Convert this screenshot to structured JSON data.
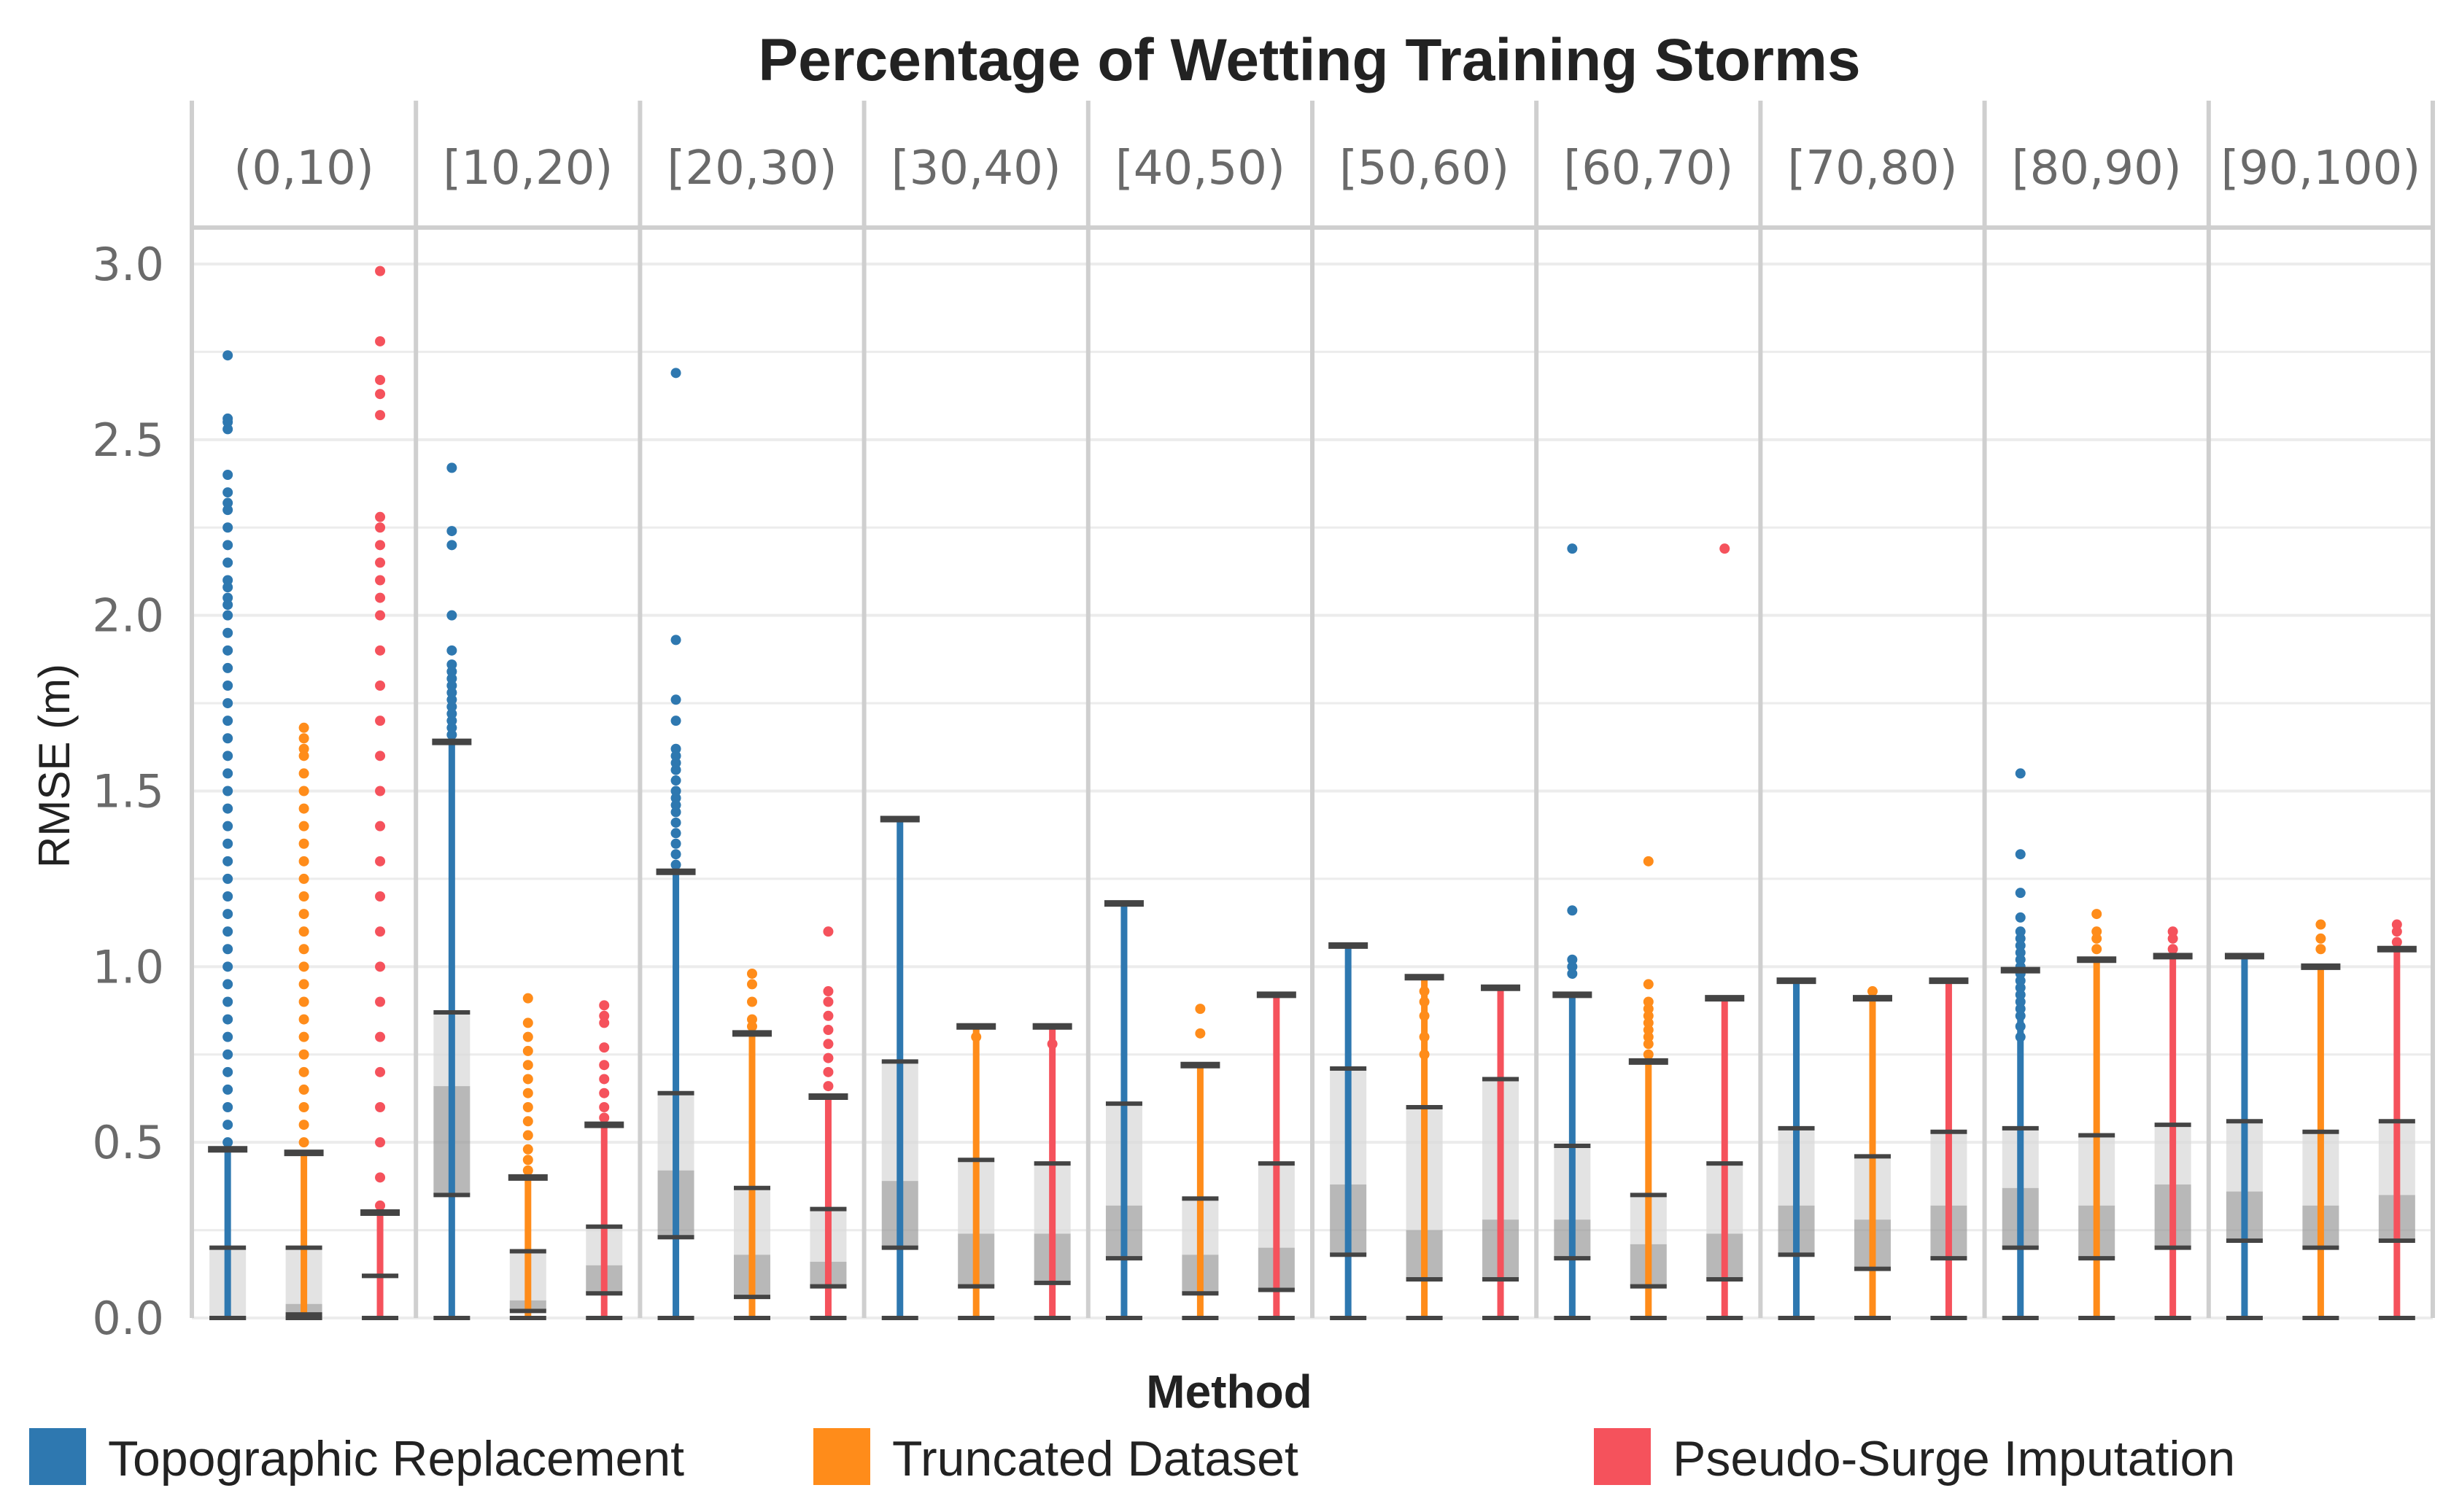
{
  "chart_data": {
    "type": "boxplot",
    "title": "Percentage of Wetting Training Storms",
    "ylabel": "RMSE (m)",
    "ylim": [
      0,
      3.0
    ],
    "yticks": [
      "0.0",
      "0.5",
      "1.0",
      "1.5",
      "2.0",
      "2.5",
      "3.0"
    ],
    "facets": [
      "(0,10)",
      "[10,20)",
      "[20,30)",
      "[30,40)",
      "[40,50)",
      "[50,60)",
      "[60,70)",
      "[70,80)",
      "[80,90)",
      "[90,100)"
    ],
    "grid": true,
    "legend": {
      "title": "Method",
      "position": "bottom",
      "entries": [
        {
          "name": "Topographic Replacement",
          "color": "#2e78b0"
        },
        {
          "name": "Truncated Dataset",
          "color": "#ff8c1a"
        },
        {
          "name": "Pseudo-Surge Imputation",
          "color": "#f5525c"
        }
      ]
    },
    "series": [
      {
        "name": "Topographic Replacement",
        "color": "#2e78b0",
        "boxes": [
          {
            "min": 0.0,
            "q1": 0.0,
            "median": 0.0,
            "q3": 0.2,
            "max": 0.48
          },
          {
            "min": 0.35,
            "q1": 0.35,
            "median": 0.66,
            "q3": 0.87,
            "max": 1.64
          },
          {
            "min": 0.23,
            "q1": 0.23,
            "median": 0.42,
            "q3": 0.64,
            "max": 1.27
          },
          {
            "min": 0.2,
            "q1": 0.2,
            "median": 0.39,
            "q3": 0.73,
            "max": 1.42
          },
          {
            "min": 0.17,
            "q1": 0.17,
            "median": 0.32,
            "q3": 0.61,
            "max": 1.18
          },
          {
            "min": 0.18,
            "q1": 0.18,
            "median": 0.38,
            "q3": 0.71,
            "max": 1.06
          },
          {
            "min": 0.17,
            "q1": 0.17,
            "median": 0.28,
            "q3": 0.49,
            "max": 0.92
          },
          {
            "min": 0.18,
            "q1": 0.18,
            "median": 0.32,
            "q3": 0.54,
            "max": 0.96
          },
          {
            "min": 0.2,
            "q1": 0.2,
            "median": 0.37,
            "q3": 0.54,
            "max": 0.99
          },
          {
            "min": 0.22,
            "q1": 0.22,
            "median": 0.36,
            "q3": 0.56,
            "max": 1.03
          }
        ],
        "outliers": [
          [
            0.5,
            0.55,
            0.6,
            0.65,
            0.7,
            0.75,
            0.8,
            0.85,
            0.9,
            0.95,
            1.0,
            1.05,
            1.1,
            1.15,
            1.2,
            1.25,
            1.3,
            1.35,
            1.4,
            1.45,
            1.5,
            1.55,
            1.6,
            1.65,
            1.7,
            1.75,
            1.8,
            1.85,
            1.9,
            1.95,
            2.0,
            2.03,
            2.05,
            2.08,
            2.1,
            2.15,
            2.2,
            2.25,
            2.3,
            2.32,
            2.35,
            2.4,
            2.53,
            2.55,
            2.56,
            2.74
          ],
          [
            1.66,
            1.68,
            1.7,
            1.72,
            1.74,
            1.76,
            1.78,
            1.8,
            1.82,
            1.84,
            1.86,
            1.9,
            2.0,
            2.2,
            2.24,
            2.42
          ],
          [
            1.29,
            1.32,
            1.35,
            1.38,
            1.41,
            1.44,
            1.46,
            1.48,
            1.5,
            1.53,
            1.56,
            1.58,
            1.6,
            1.62,
            1.7,
            1.76,
            1.93,
            2.69
          ],
          [],
          [],
          [],
          [
            0.98,
            1.0,
            1.02,
            1.16,
            2.19
          ],
          [],
          [
            0.8,
            0.83,
            0.86,
            0.88,
            0.9,
            0.92,
            0.94,
            0.96,
            0.98,
            1.0,
            1.02,
            1.04,
            1.06,
            1.08,
            1.1,
            1.14,
            1.21,
            1.32,
            1.55
          ],
          []
        ]
      },
      {
        "name": "Truncated Dataset",
        "color": "#ff8c1a",
        "boxes": [
          {
            "min": 0.0,
            "q1": 0.01,
            "median": 0.04,
            "q3": 0.2,
            "max": 0.47
          },
          {
            "min": 0.02,
            "q1": 0.02,
            "median": 0.05,
            "q3": 0.19,
            "max": 0.4
          },
          {
            "min": 0.06,
            "q1": 0.06,
            "median": 0.18,
            "q3": 0.37,
            "max": 0.81
          },
          {
            "min": 0.09,
            "q1": 0.09,
            "median": 0.24,
            "q3": 0.45,
            "max": 0.83
          },
          {
            "min": 0.07,
            "q1": 0.07,
            "median": 0.18,
            "q3": 0.34,
            "max": 0.72
          },
          {
            "min": 0.11,
            "q1": 0.11,
            "median": 0.25,
            "q3": 0.6,
            "max": 0.97
          },
          {
            "min": 0.09,
            "q1": 0.09,
            "median": 0.21,
            "q3": 0.35,
            "max": 0.73
          },
          {
            "min": 0.14,
            "q1": 0.14,
            "median": 0.28,
            "q3": 0.46,
            "max": 0.91
          },
          {
            "min": 0.17,
            "q1": 0.17,
            "median": 0.32,
            "q3": 0.52,
            "max": 1.02
          },
          {
            "min": 0.2,
            "q1": 0.2,
            "median": 0.32,
            "q3": 0.53,
            "max": 1.0
          }
        ],
        "outliers": [
          [
            0.5,
            0.55,
            0.6,
            0.65,
            0.7,
            0.75,
            0.8,
            0.85,
            0.9,
            0.95,
            1.0,
            1.05,
            1.1,
            1.15,
            1.2,
            1.25,
            1.3,
            1.35,
            1.4,
            1.45,
            1.5,
            1.55,
            1.6,
            1.62,
            1.65,
            1.68
          ],
          [
            0.42,
            0.45,
            0.48,
            0.52,
            0.56,
            0.6,
            0.64,
            0.68,
            0.72,
            0.76,
            0.8,
            0.84,
            0.91
          ],
          [
            0.83,
            0.85,
            0.9,
            0.95,
            0.98
          ],
          [
            0.8
          ],
          [
            0.81,
            0.88
          ],
          [
            0.75,
            0.8,
            0.86,
            0.9,
            0.93
          ],
          [
            0.75,
            0.78,
            0.8,
            0.82,
            0.84,
            0.86,
            0.88,
            0.9,
            0.95,
            1.3
          ],
          [
            0.93
          ],
          [
            1.05,
            1.08,
            1.1,
            1.15
          ],
          [
            1.05,
            1.08,
            1.12
          ]
        ]
      },
      {
        "name": "Pseudo-Surge Imputation",
        "color": "#f5525c",
        "boxes": [
          {
            "min": 0.12,
            "q1": 0.12,
            "median": 0.12,
            "q3": 0.12,
            "max": 0.3
          },
          {
            "min": 0.07,
            "q1": 0.07,
            "median": 0.15,
            "q3": 0.26,
            "max": 0.55
          },
          {
            "min": 0.09,
            "q1": 0.09,
            "median": 0.16,
            "q3": 0.31,
            "max": 0.63
          },
          {
            "min": 0.1,
            "q1": 0.1,
            "median": 0.24,
            "q3": 0.44,
            "max": 0.83
          },
          {
            "min": 0.08,
            "q1": 0.08,
            "median": 0.2,
            "q3": 0.44,
            "max": 0.92
          },
          {
            "min": 0.11,
            "q1": 0.11,
            "median": 0.28,
            "q3": 0.68,
            "max": 0.94
          },
          {
            "min": 0.11,
            "q1": 0.11,
            "median": 0.24,
            "q3": 0.44,
            "max": 0.91
          },
          {
            "min": 0.17,
            "q1": 0.17,
            "median": 0.32,
            "q3": 0.53,
            "max": 0.96
          },
          {
            "min": 0.2,
            "q1": 0.2,
            "median": 0.38,
            "q3": 0.55,
            "max": 1.03
          },
          {
            "min": 0.22,
            "q1": 0.22,
            "median": 0.35,
            "q3": 0.56,
            "max": 1.05
          }
        ],
        "outliers": [
          [
            0.32,
            0.4,
            0.5,
            0.6,
            0.7,
            0.8,
            0.9,
            1.0,
            1.1,
            1.2,
            1.3,
            1.4,
            1.5,
            1.6,
            1.7,
            1.8,
            1.9,
            2.0,
            2.05,
            2.1,
            2.15,
            2.2,
            2.25,
            2.28,
            2.57,
            2.63,
            2.67,
            2.78,
            2.98
          ],
          [
            0.57,
            0.6,
            0.64,
            0.68,
            0.72,
            0.77,
            0.84,
            0.86,
            0.89
          ],
          [
            0.66,
            0.7,
            0.74,
            0.78,
            0.82,
            0.86,
            0.9,
            0.93,
            1.1
          ],
          [
            0.78
          ],
          [],
          [],
          [
            2.19
          ],
          [],
          [
            1.05,
            1.08,
            1.1
          ],
          [
            1.07,
            1.1,
            1.12
          ]
        ]
      }
    ]
  }
}
